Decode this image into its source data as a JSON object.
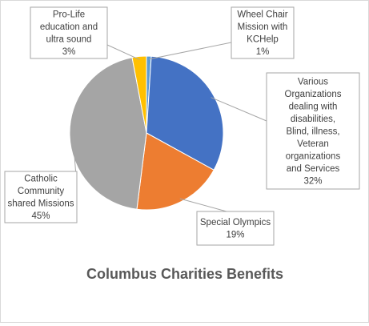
{
  "chart_data": {
    "type": "pie",
    "title": "Columbus Charities Benefits",
    "slices": [
      {
        "label": "Wheel Chair Mission with KCHelp",
        "label_lines": [
          "Wheel Chair",
          "Mission with",
          "KCHelp"
        ],
        "percent_label": "1%",
        "value": 1,
        "color": "#5b9bd5"
      },
      {
        "label": "Various Organizations dealing with disabilities, Blind, illness, Veteran organizations and Services",
        "label_lines": [
          "Various",
          "Organizations",
          "dealing with",
          "disabilities,",
          "Blind, illness,",
          "Veteran",
          "organizations",
          "and Services"
        ],
        "percent_label": "32%",
        "value": 32,
        "color": "#4472c4"
      },
      {
        "label": "Special Olympics",
        "label_lines": [
          "Special Olympics"
        ],
        "percent_label": "19%",
        "value": 19,
        "color": "#ed7d31"
      },
      {
        "label": "Catholic Community shared Missions",
        "label_lines": [
          "Catholic",
          "Community",
          "shared Missions"
        ],
        "percent_label": "45%",
        "value": 45,
        "color": "#a5a5a5"
      },
      {
        "label": "Pro-Life education and ultra sound",
        "label_lines": [
          "Pro-Life",
          "education and",
          "ultra sound"
        ],
        "percent_label": "3%",
        "value": 3,
        "color": "#ffc000"
      }
    ],
    "legend": "none"
  }
}
